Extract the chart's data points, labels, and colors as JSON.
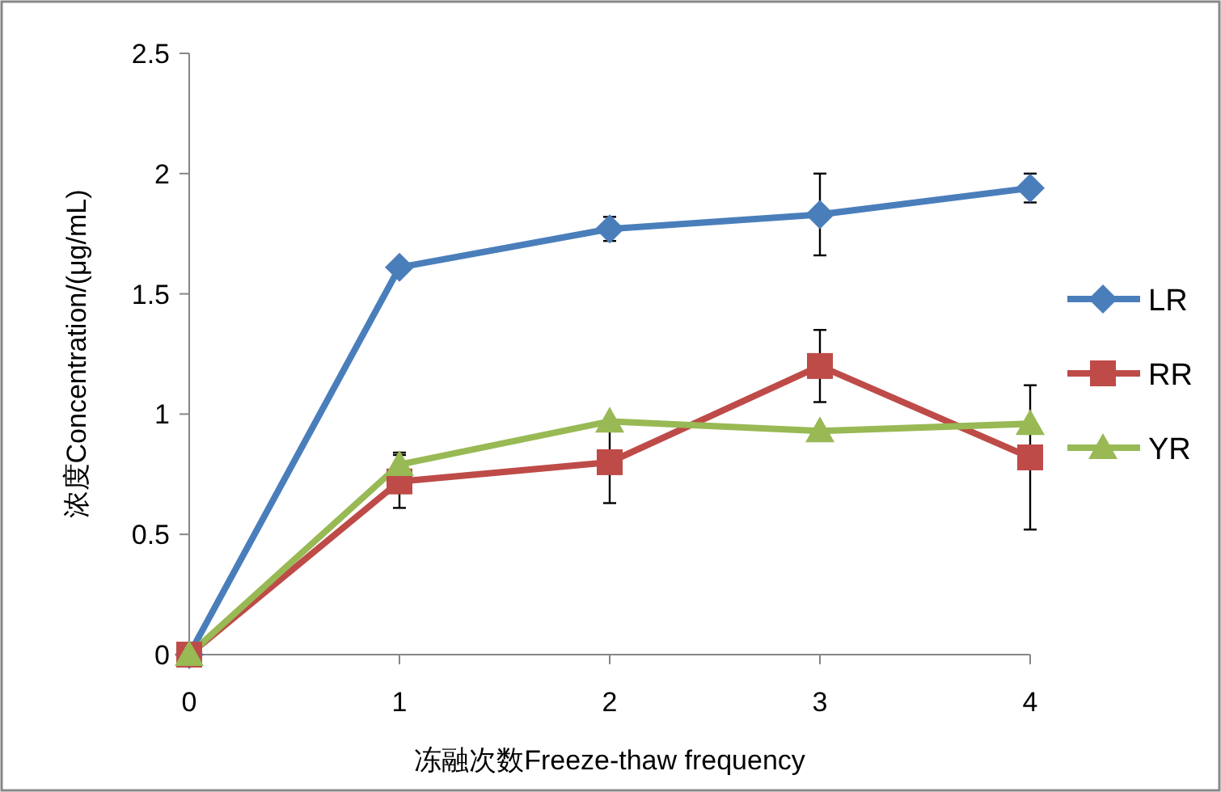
{
  "chart_data": {
    "type": "line",
    "xlabel": "冻融次数Freeze-thaw frequency",
    "ylabel": "浓度Concentration/(μg/mL)",
    "x": [
      0,
      1,
      2,
      3,
      4
    ],
    "xlim": [
      0,
      4
    ],
    "xticks": [
      0,
      1,
      2,
      3,
      4
    ],
    "ylim": [
      0,
      2.5
    ],
    "yticks": [
      0,
      0.5,
      1,
      1.5,
      2,
      2.5
    ],
    "grid": false,
    "legend": "right",
    "line_style": "solid",
    "series": [
      {
        "name": "LR",
        "color": "#4a7ebb",
        "marker": "diamond",
        "values": [
          0,
          1.61,
          1.77,
          1.83,
          1.94
        ],
        "errors": [
          null,
          null,
          0.05,
          0.17,
          0.06
        ]
      },
      {
        "name": "RR",
        "color": "#be4b48",
        "marker": "square",
        "values": [
          0,
          0.72,
          0.8,
          1.2,
          0.82
        ],
        "errors": [
          null,
          0.11,
          0.17,
          0.15,
          0.3
        ]
      },
      {
        "name": "YR",
        "color": "#98b954",
        "marker": "triangle",
        "values": [
          0,
          0.79,
          0.97,
          0.93,
          0.96
        ],
        "errors": [
          null,
          0.05,
          null,
          null,
          null
        ]
      }
    ]
  }
}
